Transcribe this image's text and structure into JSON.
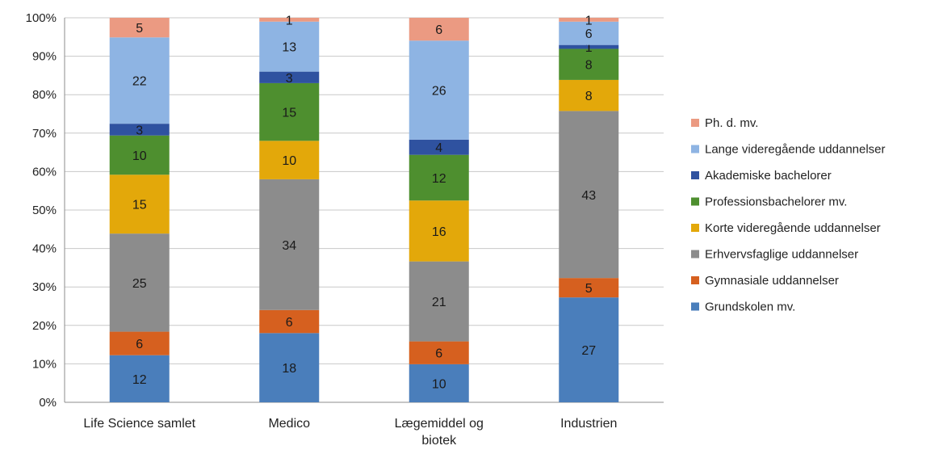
{
  "chart_data": {
    "type": "bar",
    "stacked": true,
    "percent": true,
    "categories": [
      "Life Science samlet",
      "Medico",
      "Lægemiddel og biotek",
      "Industrien"
    ],
    "series": [
      {
        "name": "Grundskolen mv.",
        "color": "#4A7EBB",
        "values": [
          12,
          18,
          10,
          27
        ]
      },
      {
        "name": "Gymnasiale uddannelser",
        "color": "#D6601F",
        "values": [
          6,
          6,
          6,
          5
        ]
      },
      {
        "name": "Erhvervsfaglige uddannelser",
        "color": "#8C8C8C",
        "values": [
          25,
          34,
          21,
          43
        ]
      },
      {
        "name": "Korte videregående uddannelser",
        "color": "#E3A80A",
        "values": [
          15,
          10,
          16,
          8
        ]
      },
      {
        "name": "Professionsbachelorer mv.",
        "color": "#4E8F2F",
        "values": [
          10,
          15,
          12,
          8
        ]
      },
      {
        "name": "Akademiske bachelorer",
        "color": "#2F52A0",
        "values": [
          3,
          3,
          4,
          1
        ]
      },
      {
        "name": "Lange videregående uddannelser",
        "color": "#8EB4E3",
        "values": [
          22,
          13,
          26,
          6
        ]
      },
      {
        "name": "Ph. d. mv.",
        "color": "#EB9A82",
        "values": [
          5,
          1,
          6,
          1
        ]
      }
    ],
    "yticks": [
      "0%",
      "10%",
      "20%",
      "30%",
      "40%",
      "50%",
      "60%",
      "70%",
      "80%",
      "90%",
      "100%"
    ],
    "ylim": [
      0,
      100
    ],
    "grid": true,
    "legend": "right"
  }
}
